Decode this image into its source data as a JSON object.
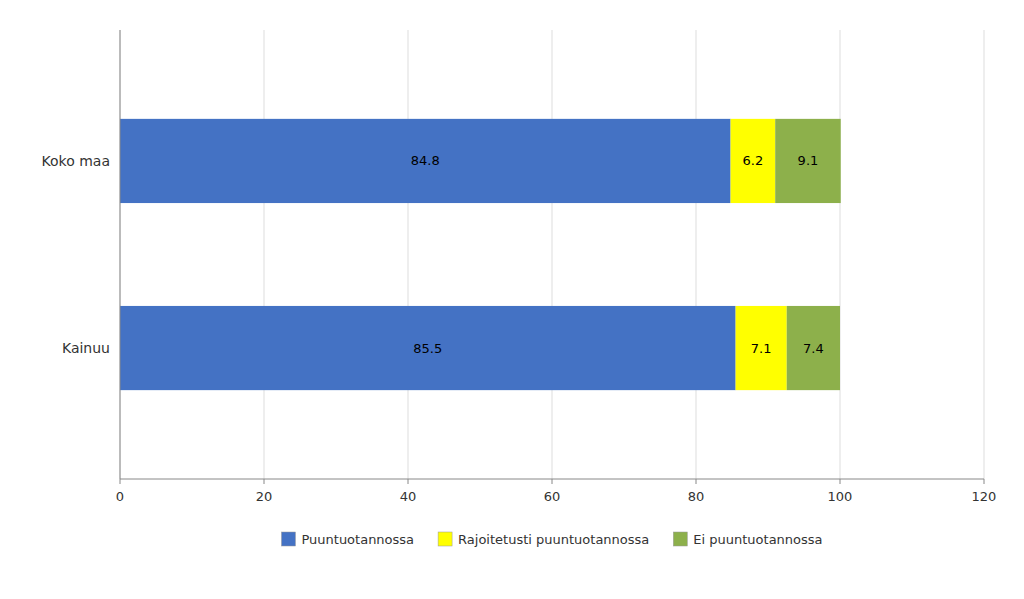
{
  "chart_data": {
    "type": "bar",
    "orientation": "horizontal",
    "stacked": true,
    "categories": [
      "Koko maa",
      "Kainuu"
    ],
    "series": [
      {
        "name": "Puuntuotannossa",
        "color": "#4472C4",
        "values": [
          84.8,
          85.5
        ]
      },
      {
        "name": "Rajoitetusti puuntuotannossa",
        "color": "#FFFF00",
        "values": [
          6.2,
          7.1
        ]
      },
      {
        "name": "Ei puuntuotannossa",
        "color": "#8DB04B",
        "values": [
          9.1,
          7.4
        ]
      }
    ],
    "xlim": [
      0,
      120
    ],
    "xticks": [
      0,
      20,
      40,
      60,
      80,
      100,
      120
    ],
    "grid": true,
    "data_labels": true,
    "legend": "bottom"
  }
}
